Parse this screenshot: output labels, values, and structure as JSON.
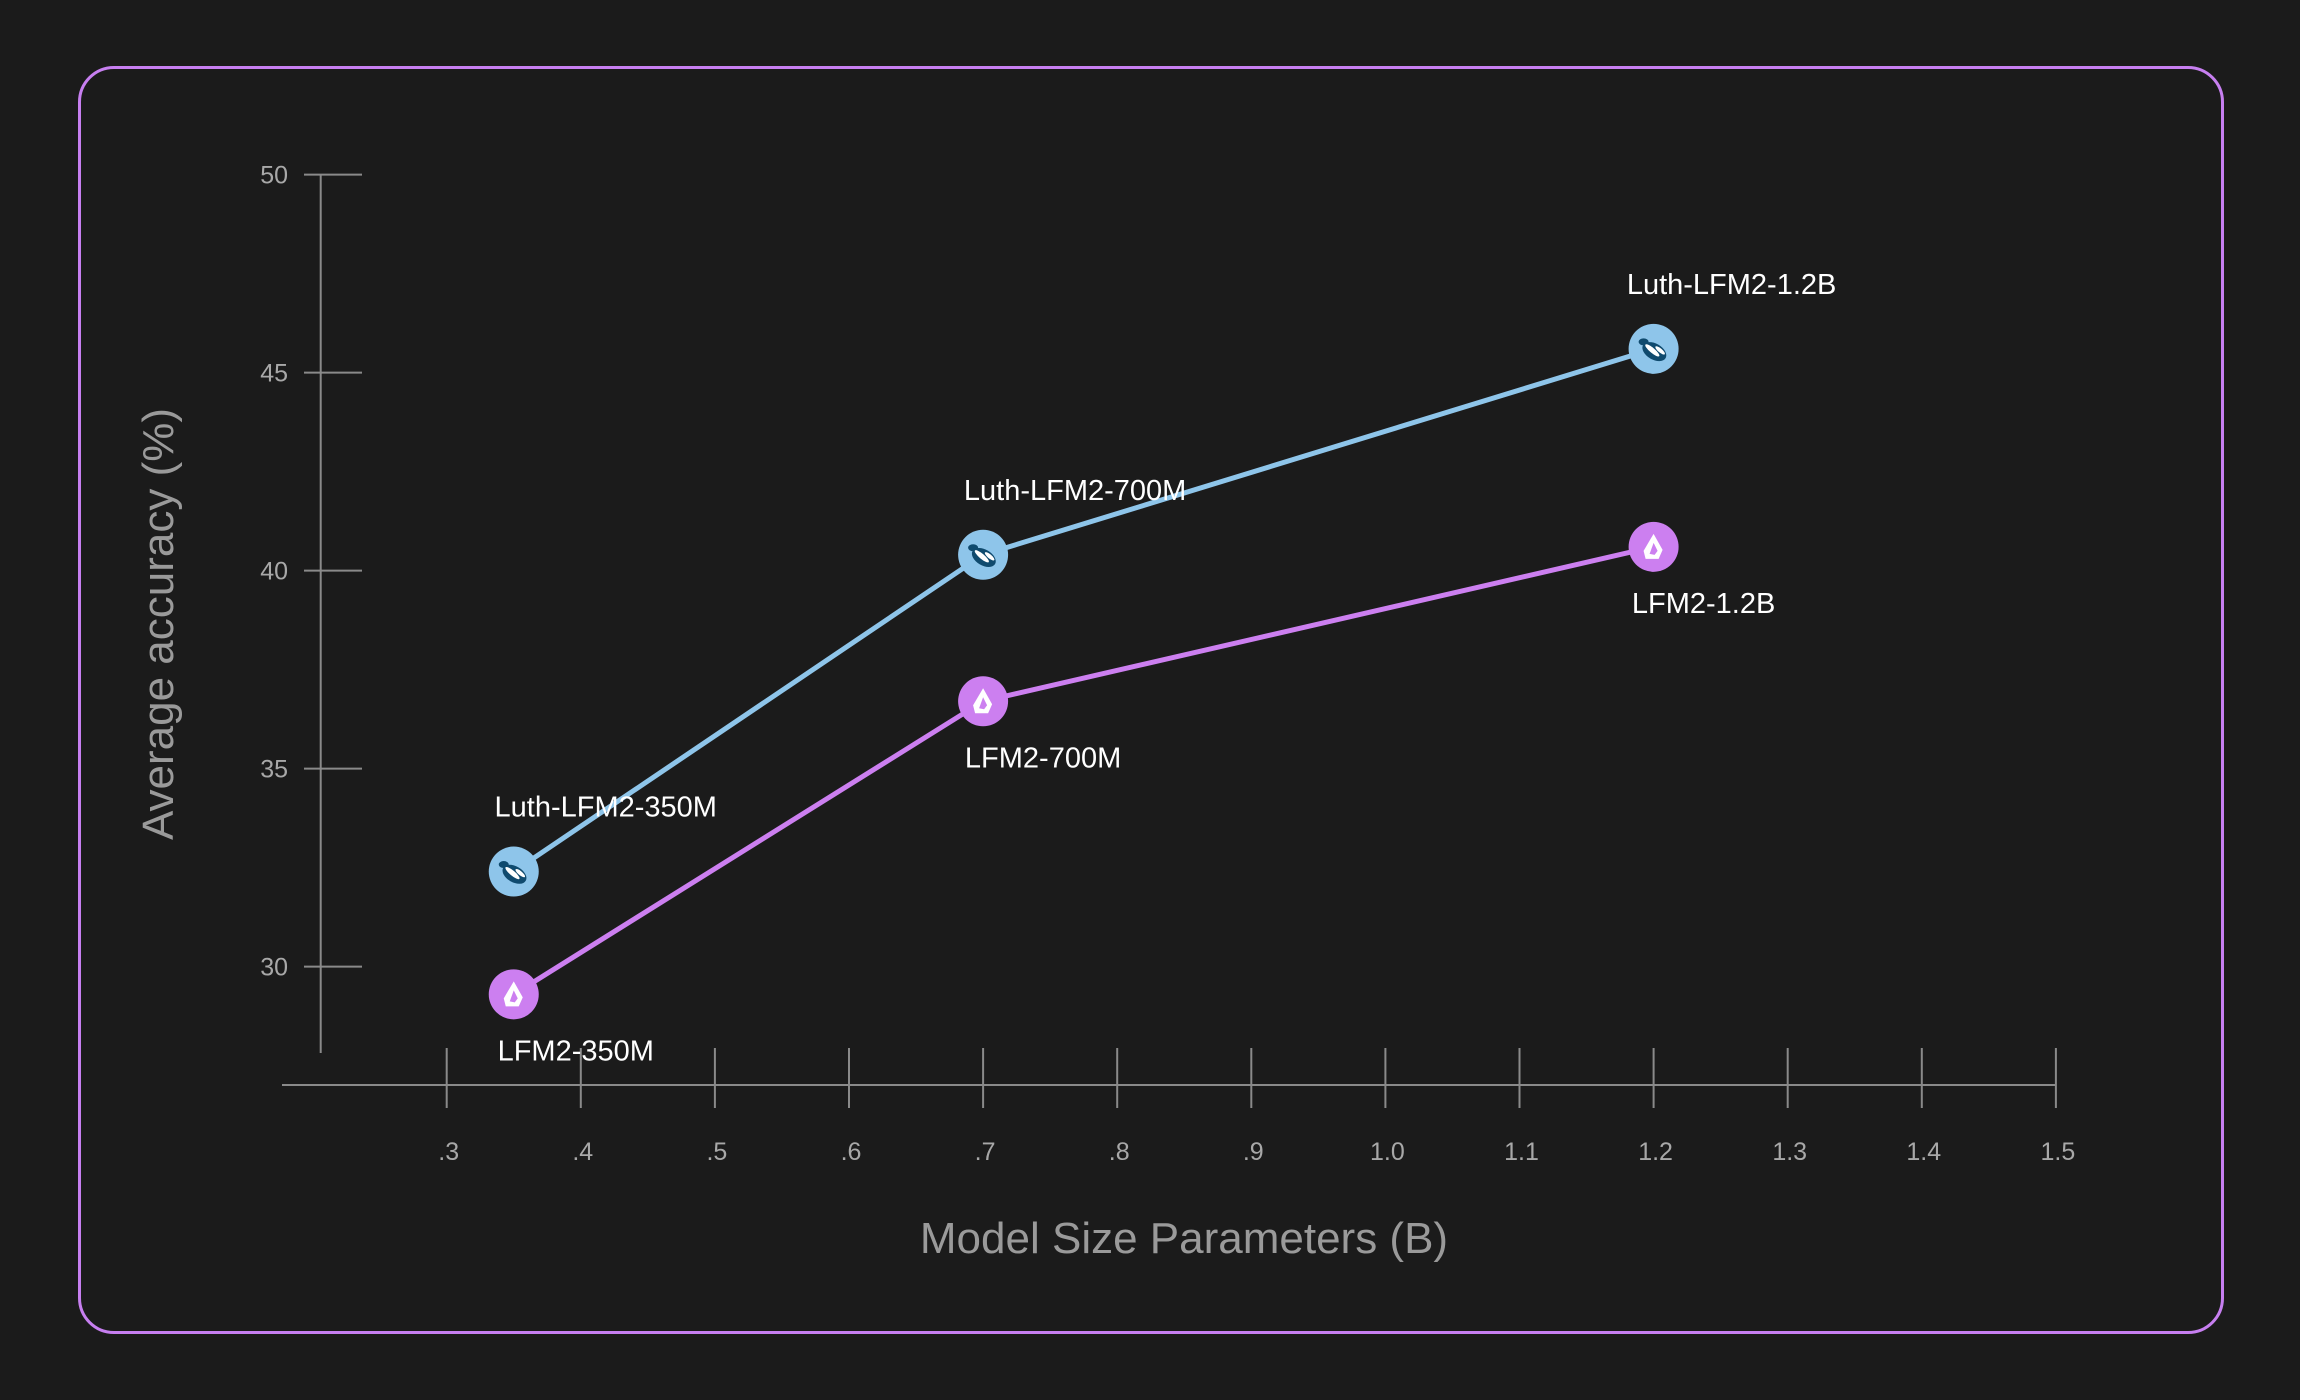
{
  "chart_data": {
    "type": "line",
    "title": "",
    "xlabel": "Model Size Parameters (B)",
    "ylabel": "Average accuracy (%)",
    "xlim": [
      0.18,
      1.5
    ],
    "ylim": [
      27.2,
      50
    ],
    "x_ticks": [
      0.3,
      0.4,
      0.5,
      0.6,
      0.7,
      0.8,
      0.9,
      1.0,
      1.1,
      1.2,
      1.3,
      1.4,
      1.5
    ],
    "x_tick_labels": [
      ".3",
      ".4",
      ".5",
      ".6",
      ".7",
      ".8",
      ".9",
      "1.0",
      "1.1",
      "1.2",
      "1.3",
      "1.4",
      "1.5"
    ],
    "y_ticks": [
      30,
      35,
      40,
      45,
      50
    ],
    "y_tick_labels": [
      "30",
      "35",
      "40",
      "45",
      "50"
    ],
    "grid": false,
    "series": [
      {
        "name": "Luth-LFM2",
        "color": "#8ec5ea",
        "icon": "turtle-icon",
        "x": [
          0.35,
          0.7,
          1.2
        ],
        "y": [
          32.4,
          40.4,
          45.6
        ],
        "labels": [
          "Luth-LFM2-350M",
          "Luth-LFM2-700M",
          "Luth-LFM2-1.2B"
        ]
      },
      {
        "name": "LFM2",
        "color": "#cc7ff0",
        "icon": "liquid-drop-icon",
        "x": [
          0.35,
          0.7,
          1.2
        ],
        "y": [
          29.3,
          36.7,
          40.6
        ],
        "labels": [
          "LFM2-350M",
          "LFM2-700M",
          "LFM2-1.2B"
        ]
      }
    ]
  },
  "colors": {
    "background": "#1b1b1b",
    "frame": "#c77ff0",
    "axis": "#8a8a8a"
  }
}
